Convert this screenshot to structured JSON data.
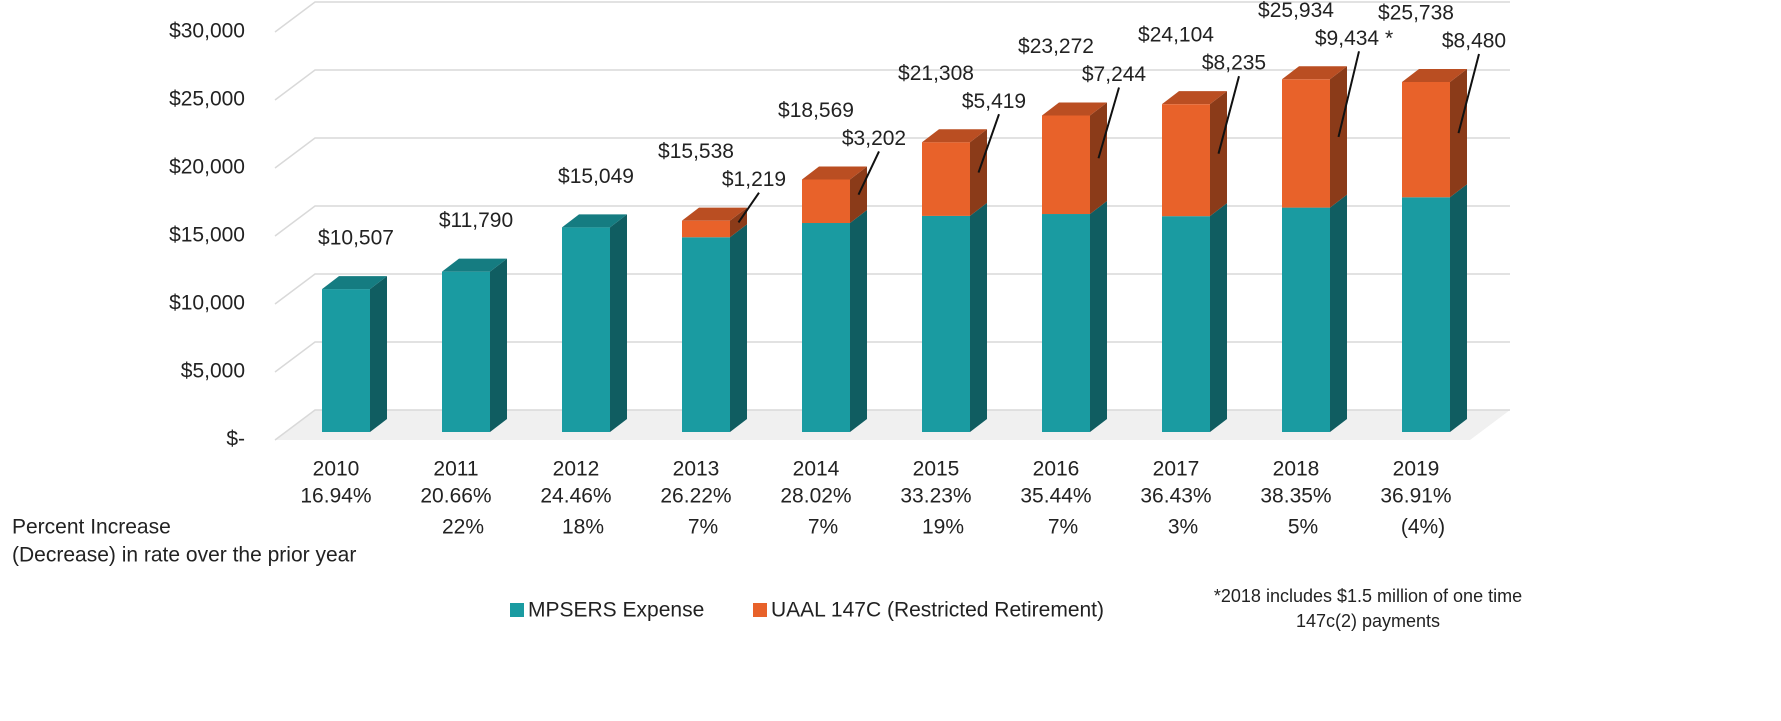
{
  "chart_data": {
    "type": "stacked_bar_3d",
    "categories": [
      "2010",
      "2011",
      "2012",
      "2013",
      "2014",
      "2015",
      "2016",
      "2017",
      "2018",
      "2019"
    ],
    "rate_labels": [
      "16.94%",
      "20.66%",
      "24.46%",
      "26.22%",
      "28.02%",
      "33.23%",
      "35.44%",
      "36.43%",
      "38.35%",
      "36.91%"
    ],
    "series": [
      {
        "name": "MPSERS Expense",
        "color": "#1a9ba1",
        "values": [
          10507,
          11790,
          15049,
          14319,
          15367,
          15889,
          16028,
          15869,
          16500,
          17258
        ]
      },
      {
        "name": "UAAL 147C (Restricted Retirement)",
        "color": "#e8622a",
        "values": [
          null,
          null,
          null,
          1219,
          3202,
          5419,
          7244,
          8235,
          9434,
          8480
        ],
        "value_labels": [
          null,
          null,
          null,
          "$1,219",
          "$3,202",
          "$5,419",
          "$7,244",
          "$8,235",
          "$9,434 *",
          "$8,480"
        ]
      }
    ],
    "totals": [
      10507,
      11790,
      15049,
      15538,
      18569,
      21308,
      23272,
      24104,
      25934,
      25738
    ],
    "total_labels": [
      "$10,507",
      "$11,790",
      "$15,049",
      "$15,538",
      "$18,569",
      "$21,308",
      "$23,272",
      "$24,104",
      "$25,934",
      "$25,738"
    ],
    "percent_change": [
      null,
      22,
      18,
      7,
      7,
      19,
      7,
      3,
      5,
      -4
    ],
    "percent_change_labels": [
      null,
      "22%",
      "18%",
      "7%",
      "7%",
      "19%",
      "7%",
      "3%",
      "5%",
      "(4%)"
    ],
    "percent_change_row_label": [
      "Percent Increase",
      "(Decrease) in rate over the prior year"
    ],
    "footnote": [
      "*2018 includes $1.5 million of one time",
      "147c(2) payments"
    ],
    "ylim": [
      0,
      30000
    ],
    "yticks": [
      {
        "value": 0,
        "label": "$-"
      },
      {
        "value": 5000,
        "label": "$5,000"
      },
      {
        "value": 10000,
        "label": "$10,000"
      },
      {
        "value": 15000,
        "label": "$15,000"
      },
      {
        "value": 20000,
        "label": "$20,000"
      },
      {
        "value": 25000,
        "label": "$25,000"
      },
      {
        "value": 30000,
        "label": "$30,000"
      }
    ],
    "grid": true,
    "legend": "bottom"
  }
}
